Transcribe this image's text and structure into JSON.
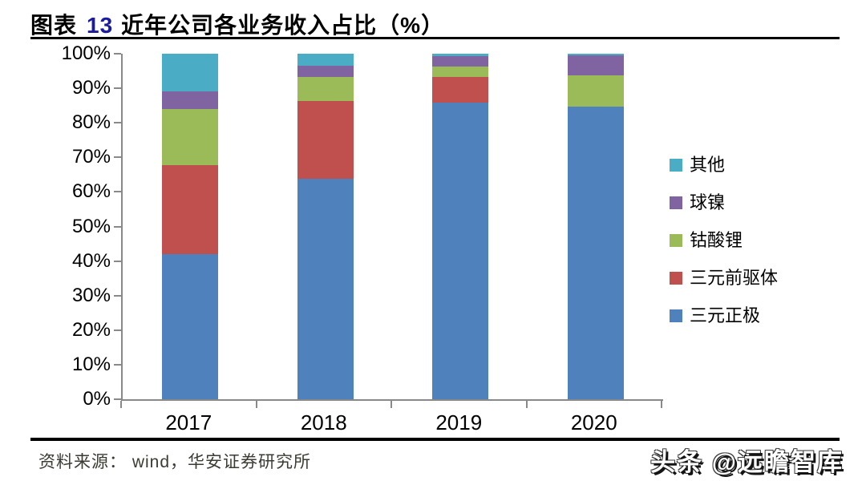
{
  "title": {
    "prefix": "图表",
    "number": "13",
    "text": "近年公司各业务收入占比（%）"
  },
  "footer": {
    "source": "资料来源： wind，华安证券研究所",
    "watermark": "头条 @远瞻智库"
  },
  "colors": {
    "axis": "#898989",
    "title_number": "#1b1b9e",
    "rule": "#000000"
  },
  "chart_data": {
    "type": "bar",
    "stacked": true,
    "title": "近年公司各业务收入占比（%）",
    "xlabel": "",
    "ylabel": "",
    "ylim": [
      0,
      100
    ],
    "grid": false,
    "legend_position": "right",
    "categories": [
      "2017",
      "2018",
      "2019",
      "2020"
    ],
    "series": [
      {
        "name": "三元正极",
        "color": "#4F81BD",
        "values": [
          41.9,
          63.7,
          85.9,
          84.7
        ]
      },
      {
        "name": "三元前驱体",
        "color": "#C0504D",
        "values": [
          25.9,
          22.7,
          7.3,
          0
        ]
      },
      {
        "name": "钴酸锂",
        "color": "#9BBB59",
        "values": [
          16.2,
          6.8,
          3.1,
          9.0
        ]
      },
      {
        "name": "球镍",
        "color": "#8064A2",
        "values": [
          5.0,
          3.3,
          3.0,
          5.8
        ]
      },
      {
        "name": "其他",
        "color": "#4BACC6",
        "values": [
          11.0,
          3.5,
          0.7,
          0.5
        ]
      }
    ],
    "legend_order": [
      "其他",
      "球镍",
      "钴酸锂",
      "三元前驱体",
      "三元正极"
    ],
    "y_ticks": [
      "100%",
      "90%",
      "80%",
      "70%",
      "60%",
      "50%",
      "40%",
      "30%",
      "20%",
      "10%",
      "0%"
    ]
  }
}
